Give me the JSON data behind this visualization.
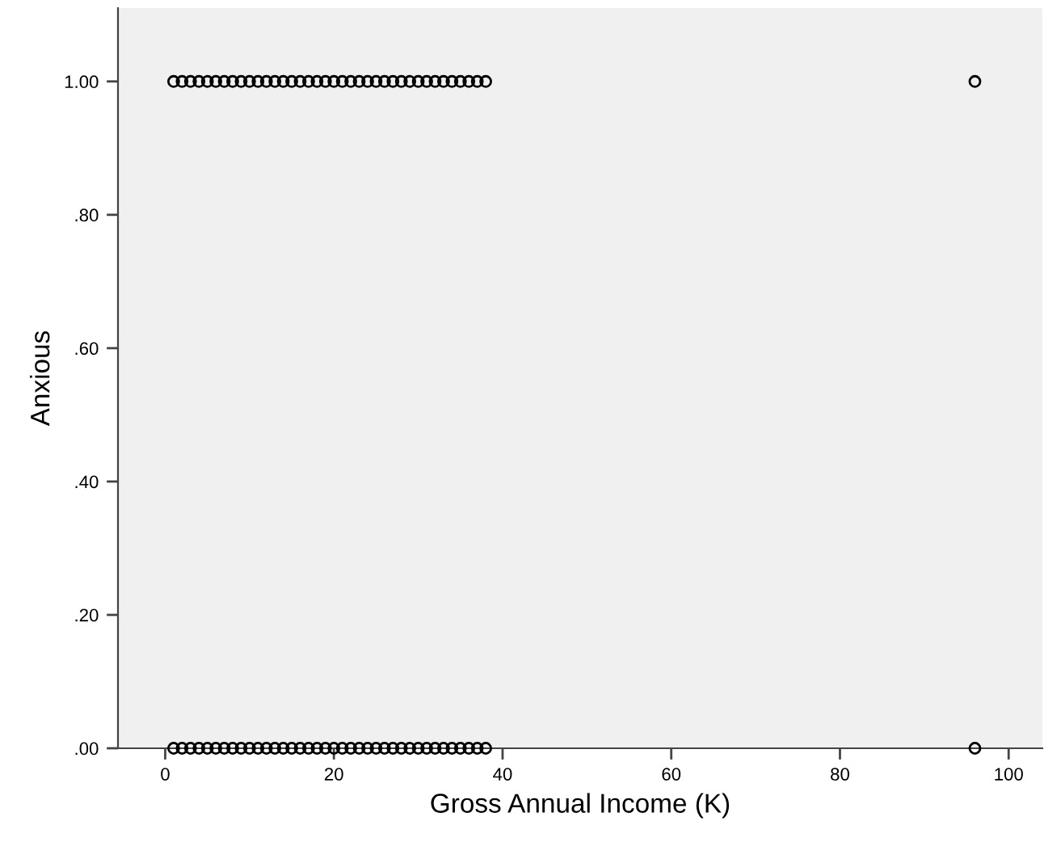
{
  "chart_data": {
    "type": "scatter",
    "xlabel": "Gross Annual Income (K)",
    "ylabel": "Anxious",
    "x": [
      1,
      2,
      3,
      4,
      5,
      6,
      7,
      8,
      9,
      10,
      11,
      12,
      13,
      14,
      15,
      16,
      17,
      18,
      19,
      20,
      21,
      22,
      23,
      24,
      25,
      26,
      27,
      28,
      29,
      30,
      31,
      32,
      33,
      34,
      35,
      36,
      37,
      38,
      96,
      1,
      2,
      3,
      4,
      5,
      6,
      7,
      8,
      9,
      10,
      11,
      12,
      13,
      14,
      15,
      16,
      17,
      18,
      19,
      20,
      21,
      22,
      23,
      24,
      25,
      26,
      27,
      28,
      29,
      30,
      31,
      32,
      33,
      34,
      35,
      36,
      37,
      38,
      96
    ],
    "values": [
      1,
      1,
      1,
      1,
      1,
      1,
      1,
      1,
      1,
      1,
      1,
      1,
      1,
      1,
      1,
      1,
      1,
      1,
      1,
      1,
      1,
      1,
      1,
      1,
      1,
      1,
      1,
      1,
      1,
      1,
      1,
      1,
      1,
      1,
      1,
      1,
      1,
      1,
      1,
      0,
      0,
      0,
      0,
      0,
      0,
      0,
      0,
      0,
      0,
      0,
      0,
      0,
      0,
      0,
      0,
      0,
      0,
      0,
      0,
      0,
      0,
      0,
      0,
      0,
      0,
      0,
      0,
      0,
      0,
      0,
      0,
      0,
      0,
      0,
      0,
      0,
      0,
      0
    ],
    "color": "#000000",
    "marker": "circle",
    "grid": false,
    "xlim": [
      -5.6,
      104
    ],
    "ylim": [
      0,
      1.11
    ],
    "xticks": [
      0,
      20,
      40,
      60,
      80,
      100
    ],
    "yticks": [
      {
        "value": 0,
        "label": ".00"
      },
      {
        "value": 0.2,
        "label": ".20"
      },
      {
        "value": 0.4,
        "label": ".40"
      },
      {
        "value": 0.6,
        "label": ".60"
      },
      {
        "value": 0.8,
        "label": ".80"
      },
      {
        "value": 1,
        "label": "1.00"
      }
    ]
  }
}
